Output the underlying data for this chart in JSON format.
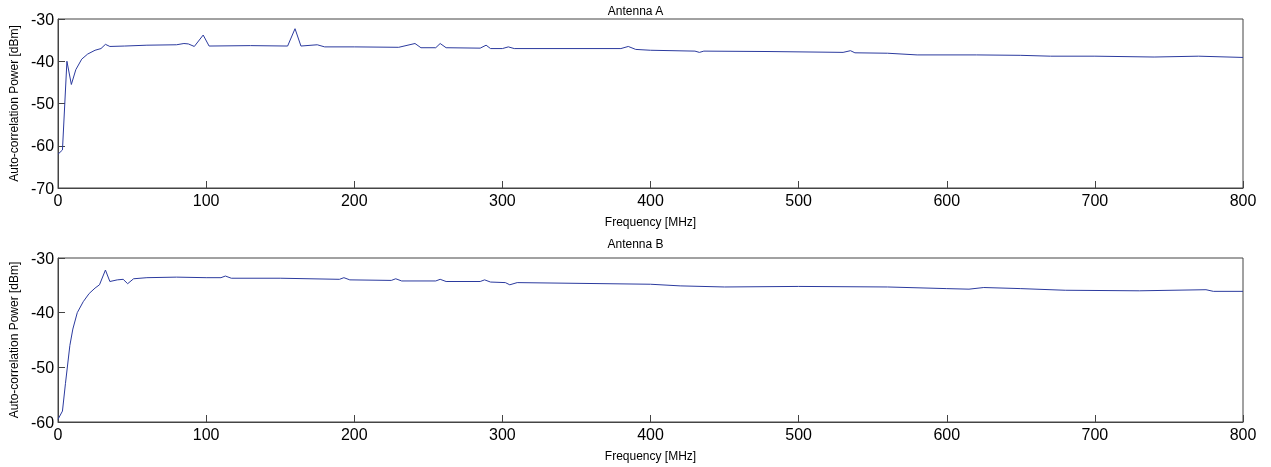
{
  "chart_data": [
    {
      "type": "line",
      "title": "Antenna A",
      "xlabel": "Frequency [MHz]",
      "ylabel": "Auto-correlation Power [dBm]",
      "xlim": [
        0,
        800
      ],
      "xticks": [
        0,
        100,
        200,
        300,
        400,
        500,
        600,
        700,
        800
      ],
      "ylim": [
        -70,
        -30
      ],
      "yticks": [
        -70,
        -60,
        -50,
        -40,
        -30
      ],
      "grid": false,
      "marker": "none",
      "line_style": "solid",
      "series": [
        {
          "color": "#2b3a9e",
          "x": [
            0,
            3,
            6,
            9,
            12,
            16,
            20,
            25,
            29,
            32,
            35,
            45,
            60,
            80,
            85,
            88,
            92,
            98,
            102,
            130,
            155,
            160,
            164,
            175,
            180,
            200,
            230,
            241,
            245,
            255,
            258,
            262,
            285,
            289,
            292,
            300,
            304,
            308,
            380,
            385,
            390,
            400,
            430,
            433,
            436,
            480,
            530,
            535,
            538,
            560,
            580,
            620,
            650,
            670,
            700,
            740,
            770,
            800
          ],
          "values": [
            -62,
            -61,
            -40,
            -45.5,
            -42,
            -39.5,
            -38.3,
            -37.4,
            -37,
            -36,
            -36.5,
            -36.4,
            -36.2,
            -36.1,
            -35.8,
            -35.9,
            -36.5,
            -33.8,
            -36.4,
            -36.3,
            -36.4,
            -32.3,
            -36.4,
            -36.1,
            -36.6,
            -36.6,
            -36.7,
            -35.8,
            -36.8,
            -36.8,
            -35.8,
            -36.8,
            -36.9,
            -36.2,
            -37,
            -37,
            -36.6,
            -37,
            -37,
            -36.5,
            -37.2,
            -37.4,
            -37.6,
            -37.9,
            -37.6,
            -37.7,
            -37.9,
            -37.5,
            -38,
            -38.1,
            -38.5,
            -38.5,
            -38.6,
            -38.8,
            -38.8,
            -39,
            -38.8,
            -39.1
          ]
        }
      ]
    },
    {
      "type": "line",
      "title": "Antenna B",
      "xlabel": "Frequency [MHz]",
      "ylabel": "Auto-correlation Power [dBm]",
      "xlim": [
        0,
        800
      ],
      "xticks": [
        0,
        100,
        200,
        300,
        400,
        500,
        600,
        700,
        800
      ],
      "ylim": [
        -60,
        -30
      ],
      "yticks": [
        -60,
        -50,
        -40,
        -30
      ],
      "grid": false,
      "marker": "none",
      "line_style": "solid",
      "series": [
        {
          "color": "#2b3a9e",
          "x": [
            0,
            3,
            5,
            8,
            10,
            13,
            17,
            21,
            25,
            28,
            32,
            35,
            40,
            44,
            47,
            51,
            60,
            80,
            100,
            110,
            113,
            117,
            150,
            190,
            193,
            197,
            225,
            228,
            232,
            255,
            258,
            262,
            285,
            288,
            292,
            302,
            305,
            310,
            400,
            420,
            450,
            500,
            560,
            600,
            615,
            625,
            650,
            680,
            730,
            775,
            780,
            800
          ],
          "values": [
            -59.5,
            -58,
            -53,
            -46,
            -43,
            -40,
            -38,
            -36.5,
            -35.5,
            -34.9,
            -32.2,
            -34.3,
            -34,
            -33.9,
            -34.7,
            -33.8,
            -33.6,
            -33.5,
            -33.6,
            -33.6,
            -33.3,
            -33.7,
            -33.7,
            -33.9,
            -33.6,
            -34,
            -34.1,
            -33.8,
            -34.2,
            -34.2,
            -33.9,
            -34.3,
            -34.3,
            -34,
            -34.4,
            -34.5,
            -34.9,
            -34.5,
            -34.8,
            -35.1,
            -35.3,
            -35.2,
            -35.3,
            -35.6,
            -35.7,
            -35.4,
            -35.6,
            -35.9,
            -36,
            -35.8,
            -36.1,
            -36.1
          ]
        }
      ]
    }
  ]
}
